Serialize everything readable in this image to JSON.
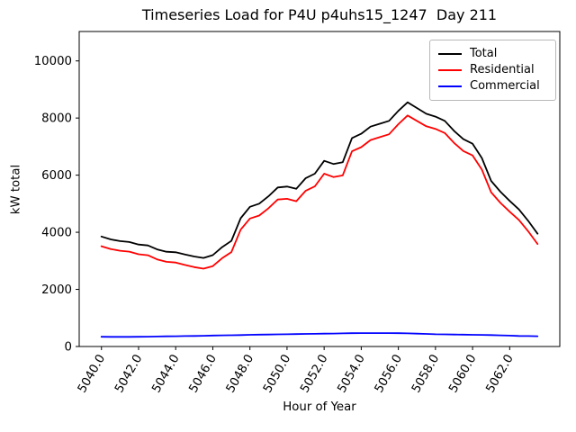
{
  "figure": {
    "title": "Timeseries Load for P4U p4uhs15_1247  Day 211",
    "xlabel": "Hour of Year",
    "ylabel": "kW total"
  },
  "legend": {
    "position": "upper right",
    "entries": [
      {
        "label": "Total",
        "color": "#000000"
      },
      {
        "label": "Residential",
        "color": "#ff0000"
      },
      {
        "label": "Commercial",
        "color": "#0000ff"
      }
    ]
  },
  "chart_data": {
    "type": "line",
    "title": "Timeseries Load for P4U p4uhs15_1247  Day 211",
    "xlabel": "Hour of Year",
    "ylabel": "kW total",
    "grid": false,
    "legend_position": "upper right",
    "xlim": [
      5038.8,
      5064.7
    ],
    "ylim": [
      0,
      11030
    ],
    "xticks": [
      5040,
      5042,
      5044,
      5046,
      5048,
      5050,
      5052,
      5054,
      5056,
      5058,
      5060,
      5062
    ],
    "xtick_labels": [
      "5040.0",
      "5042.0",
      "5044.0",
      "5046.0",
      "5048.0",
      "5050.0",
      "5052.0",
      "5054.0",
      "5056.0",
      "5058.0",
      "5060.0",
      "5062.0"
    ],
    "yticks": [
      0,
      2000,
      4000,
      6000,
      8000,
      10000
    ],
    "ytick_labels": [
      "0",
      "2000",
      "4000",
      "6000",
      "8000",
      "10000"
    ],
    "x": [
      5040.0,
      5040.5,
      5041.0,
      5041.5,
      5042.0,
      5042.5,
      5043.0,
      5043.5,
      5044.0,
      5044.5,
      5045.0,
      5045.5,
      5046.0,
      5046.5,
      5047.0,
      5047.5,
      5048.0,
      5048.5,
      5049.0,
      5049.5,
      5050.0,
      5050.5,
      5051.0,
      5051.5,
      5052.0,
      5052.5,
      5053.0,
      5053.5,
      5054.0,
      5054.5,
      5055.0,
      5055.5,
      5056.0,
      5056.5,
      5057.0,
      5057.5,
      5058.0,
      5058.5,
      5059.0,
      5059.5,
      5060.0,
      5060.5,
      5061.0,
      5061.5,
      5062.0,
      5062.5,
      5063.0,
      5063.5
    ],
    "series": [
      {
        "name": "Total",
        "color": "#000000",
        "values": [
          3850,
          3750,
          3690,
          3660,
          3570,
          3540,
          3400,
          3320,
          3300,
          3220,
          3150,
          3100,
          3200,
          3480,
          3700,
          4490,
          4890,
          5000,
          5260,
          5570,
          5600,
          5520,
          5890,
          6050,
          6500,
          6390,
          6450,
          7300,
          7450,
          7700,
          7800,
          7900,
          8250,
          8550,
          8350,
          8150,
          8050,
          7900,
          7550,
          7260,
          7100,
          6600,
          5800,
          5420,
          5100,
          4800,
          4400,
          3950
        ]
      },
      {
        "name": "Residential",
        "color": "#ff0000",
        "values": [
          3510,
          3412,
          3354,
          3322,
          3230,
          3195,
          3050,
          2965,
          2940,
          2855,
          2780,
          2725,
          2815,
          3090,
          3305,
          4090,
          4480,
          4585,
          4840,
          5145,
          5170,
          5085,
          5450,
          5605,
          6050,
          5935,
          5990,
          6835,
          6980,
          7230,
          7330,
          7432,
          7785,
          8090,
          7900,
          7710,
          7620,
          7475,
          7130,
          6845,
          6690,
          6195,
          5400,
          5030,
          4720,
          4430,
          4035,
          3590
        ]
      },
      {
        "name": "Commercial",
        "color": "#0000ff",
        "values": [
          340,
          338,
          336,
          338,
          340,
          345,
          350,
          355,
          360,
          365,
          370,
          375,
          385,
          390,
          395,
          400,
          410,
          415,
          420,
          425,
          430,
          435,
          440,
          445,
          450,
          455,
          460,
          465,
          470,
          470,
          470,
          468,
          465,
          460,
          450,
          440,
          430,
          425,
          420,
          415,
          410,
          405,
          400,
          390,
          380,
          370,
          365,
          360
        ]
      }
    ]
  }
}
